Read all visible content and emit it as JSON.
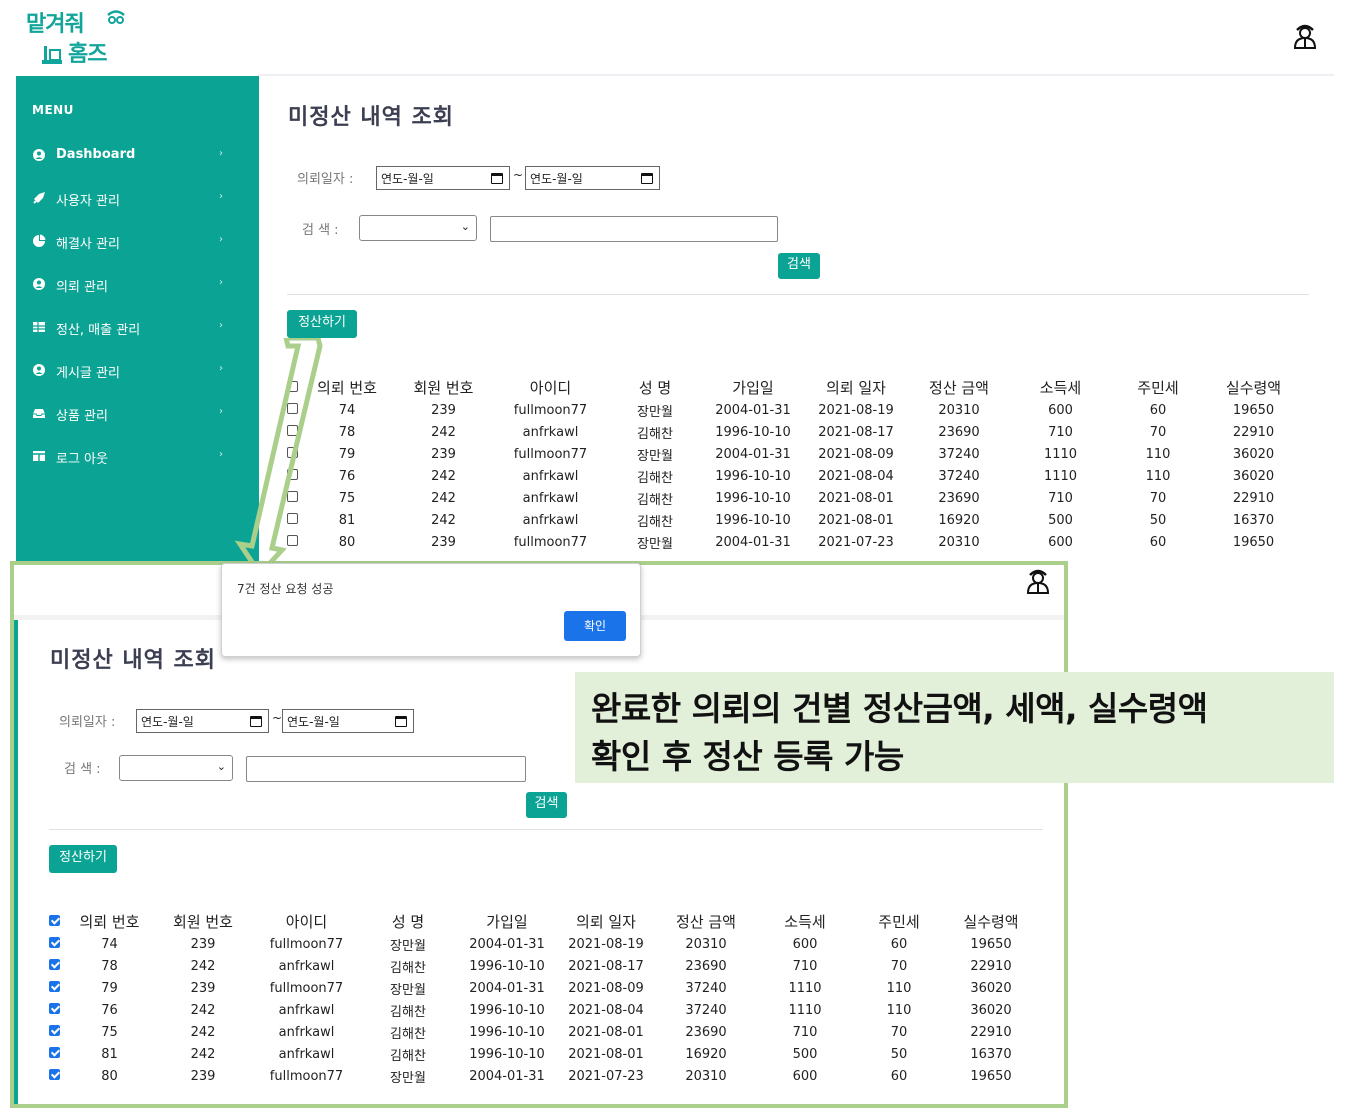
{
  "logo": {
    "line1": "맡겨줘",
    "line2": "홈즈"
  },
  "sidebar": {
    "title": "MENU",
    "items": [
      {
        "label": "Dashboard",
        "icon": "user-circle-icon"
      },
      {
        "label": "사용자 관리",
        "icon": "rocket-icon"
      },
      {
        "label": "해결사 관리",
        "icon": "pie-chart-icon"
      },
      {
        "label": "의뢰 관리",
        "icon": "user-circle-icon"
      },
      {
        "label": "정산, 매출 관리",
        "icon": "table-icon"
      },
      {
        "label": "게시글 관리",
        "icon": "user-circle-icon"
      },
      {
        "label": "상품 관리",
        "icon": "inbox-icon"
      },
      {
        "label": "로그 아웃",
        "icon": "columns-icon"
      }
    ]
  },
  "main": {
    "title": "미정산 내역 조회",
    "date_label": "의뢰일자 :",
    "date_placeholder": "연도-월-일",
    "tilde": "~",
    "search_label": "검 색 :",
    "search_button": "검색",
    "settle_button": "정산하기"
  },
  "table": {
    "headers": [
      "의뢰 번호",
      "회원 번호",
      "아이디",
      "성 명",
      "가입일",
      "의뢰 일자",
      "정산 금액",
      "소득세",
      "주민세",
      "실수령액"
    ],
    "rows": [
      [
        "74",
        "239",
        "fullmoon77",
        "장만월",
        "2004-01-31",
        "2021-08-19",
        "20310",
        "600",
        "60",
        "19650"
      ],
      [
        "78",
        "242",
        "anfrkawl",
        "김해찬",
        "1996-10-10",
        "2021-08-17",
        "23690",
        "710",
        "70",
        "22910"
      ],
      [
        "79",
        "239",
        "fullmoon77",
        "장만월",
        "2004-01-31",
        "2021-08-09",
        "37240",
        "1110",
        "110",
        "36020"
      ],
      [
        "76",
        "242",
        "anfrkawl",
        "김해찬",
        "1996-10-10",
        "2021-08-04",
        "37240",
        "1110",
        "110",
        "36020"
      ],
      [
        "75",
        "242",
        "anfrkawl",
        "김해찬",
        "1996-10-10",
        "2021-08-01",
        "23690",
        "710",
        "70",
        "22910"
      ],
      [
        "81",
        "242",
        "anfrkawl",
        "김해찬",
        "1996-10-10",
        "2021-08-01",
        "16920",
        "500",
        "50",
        "16370"
      ],
      [
        "80",
        "239",
        "fullmoon77",
        "장만월",
        "2004-01-31",
        "2021-07-23",
        "20310",
        "600",
        "60",
        "19650"
      ]
    ]
  },
  "dialog": {
    "message": "7건 정산 요청 성공",
    "ok": "확인"
  },
  "callout": {
    "line1": "완료한 의뢰의 건별 정산금액, 세액, 실수령액",
    "line2": "확인 후 정산 등록 가능"
  },
  "colors": {
    "accent": "#0ba394",
    "frame": "#a9cf8b",
    "callout_bg": "#e2efd9",
    "button_blue": "#1a73e8"
  }
}
